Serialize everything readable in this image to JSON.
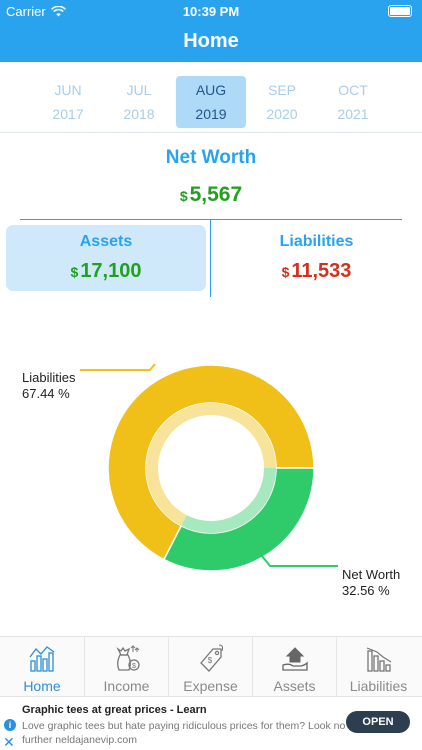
{
  "status_bar": {
    "carrier": "Carrier",
    "time": "10:39 PM"
  },
  "nav": {
    "title": "Home"
  },
  "months": [
    {
      "month": "JUN",
      "year": "2017"
    },
    {
      "month": "JUL",
      "year": "2018"
    },
    {
      "month": "AUG",
      "year": "2019",
      "selected": true
    },
    {
      "month": "SEP",
      "year": "2020"
    },
    {
      "month": "OCT",
      "year": "2021"
    }
  ],
  "net_worth": {
    "label": "Net Worth",
    "currency": "$",
    "value": "5,567"
  },
  "assets": {
    "label": "Assets",
    "currency": "$",
    "value": "17,100"
  },
  "liabilities": {
    "label": "Liabilities",
    "currency": "$",
    "value": "11,533"
  },
  "chart_data": {
    "type": "pie",
    "categories": [
      "Liabilities",
      "Net Worth"
    ],
    "values": [
      67.44,
      32.56
    ],
    "labels": [
      "67.44 %",
      "32.56 %"
    ],
    "colors": [
      "#f0c018",
      "#2fcb6b"
    ],
    "donut": true
  },
  "tabs": [
    {
      "label": "Home",
      "icon": "chart-icon",
      "active": true
    },
    {
      "label": "Income",
      "icon": "money-bag-icon"
    },
    {
      "label": "Expense",
      "icon": "price-tag-icon"
    },
    {
      "label": "Assets",
      "icon": "house-hand-icon"
    },
    {
      "label": "Liabilities",
      "icon": "declining-bars-icon"
    }
  ],
  "ad": {
    "title": "Graphic tees at great prices - Learn",
    "description": "Love graphic tees but hate paying ridiculous prices for them? Look no further neldajanevip.com",
    "button": "OPEN",
    "info_glyph": "i",
    "close_glyph": "✕"
  },
  "colors": {
    "accent": "#2aa3ee",
    "positive": "#21a11f",
    "negative": "#d2311c"
  }
}
